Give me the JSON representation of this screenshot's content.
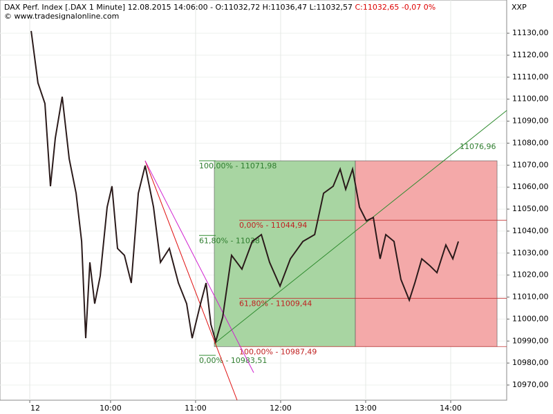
{
  "chart_data": {
    "type": "line",
    "title": "DAX Perf. Index [.DAX  1 Minute] 12.08.2015 14:06:00 - O:11032,72 H:11036,47 L:11032,57",
    "title_change": "C:11032,65 -0,07 0%",
    "source": "© www.tradesignalonline.com",
    "axis_label": "XXP",
    "xlim": [
      522,
      879.5
    ],
    "ylim": [
      10963.1,
      11145.1
    ],
    "xticks": [
      {
        "value": 543,
        "label": "12"
      },
      {
        "value": 600,
        "label": "10:00"
      },
      {
        "value": 660,
        "label": "11:00"
      },
      {
        "value": 720,
        "label": "12:00"
      },
      {
        "value": 780,
        "label": "13:00"
      },
      {
        "value": 840,
        "label": "14:00"
      }
    ],
    "yticks": [
      {
        "value": 10970,
        "label": "10970,00"
      },
      {
        "value": 10980,
        "label": "10980,00"
      },
      {
        "value": 10990,
        "label": "10990,00"
      },
      {
        "value": 11000,
        "label": "11000,00"
      },
      {
        "value": 11010,
        "label": "11010,00"
      },
      {
        "value": 11020,
        "label": "11020,00"
      },
      {
        "value": 11030,
        "label": "11030,00"
      },
      {
        "value": 11040,
        "label": "11040,00"
      },
      {
        "value": 11050,
        "label": "11050,00"
      },
      {
        "value": 11060,
        "label": "11060,00"
      },
      {
        "value": 11070,
        "label": "11070,00"
      },
      {
        "value": 11080,
        "label": "11080,00"
      },
      {
        "value": 11090,
        "label": "11090,00"
      },
      {
        "value": 11100,
        "label": "11100,00"
      },
      {
        "value": 11110,
        "label": "11110,00"
      },
      {
        "value": 11120,
        "label": "11120,00"
      },
      {
        "value": 11130,
        "label": "11130,00"
      }
    ],
    "grid": true,
    "series": [
      {
        "name": "DAX",
        "color": "#2a1a1a",
        "x": [
          544,
          548.8,
          553.7,
          557.6,
          561,
          565.9,
          570.8,
          575.7,
          579.6,
          582.5,
          585.4,
          588.8,
          592.7,
          597.6,
          601,
          604.9,
          609.8,
          614.6,
          619.6,
          624.4,
          630.3,
          635.2,
          641.5,
          647.9,
          653.7,
          657.6,
          663.5,
          667.4,
          670.8,
          674.2,
          679.1,
          685.4,
          692.7,
          700,
          706.4,
          712.2,
          719.6,
          726.9,
          735.7,
          744,
          750.3,
          757.1,
          762,
          765.9,
          770.8,
          775.6,
          780.5,
          785.4,
          790.2,
          794.2,
          800,
          804.9,
          810.8,
          814.7,
          819.6,
          825.4,
          830.3,
          836.6,
          841.5,
          845.4
        ],
        "values": [
          11131,
          11107.4,
          11098,
          11060.4,
          11082.3,
          11101.1,
          11072.9,
          11057.2,
          11035.3,
          10991.3,
          11025.8,
          11007,
          11019.6,
          11050.9,
          11060.4,
          11032.1,
          11029,
          11016.4,
          11057.2,
          11069.8,
          11050.9,
          11025.8,
          11032.1,
          11016.4,
          11007,
          10991.3,
          11007,
          11016.4,
          10997.6,
          10989.8,
          11000.8,
          11029,
          11022.7,
          11035.3,
          11038.4,
          11025.8,
          11015,
          11027.4,
          11035.3,
          11038.4,
          11057.2,
          11060.4,
          11068.2,
          11059,
          11068.2,
          11050.9,
          11044.7,
          11046.2,
          11027.4,
          11038.4,
          11035.3,
          11018,
          11008.6,
          11016.4,
          11027.4,
          11024.2,
          11021.1,
          11033.7,
          11027.4,
          11035.3
        ]
      }
    ],
    "boxes": [
      {
        "x": [
          673.2,
          772.7
        ],
        "y": [
          10987.49,
          11071.98
        ],
        "color": "#a8d5a2"
      },
      {
        "x": [
          772.7,
          872.7
        ],
        "y": [
          10987.49,
          11071.98
        ],
        "color": "#f4a9a9"
      }
    ],
    "fib_green": [
      {
        "label": "100,00% - 11071,98",
        "value": 11071.98
      },
      {
        "label": "61,80% - 11038",
        "value": 11038
      },
      {
        "label": "0,00% - 10983,51",
        "value": 10983.51
      }
    ],
    "fib_red": [
      {
        "label": "0,00% - 11044,94",
        "value": 11044.94
      },
      {
        "label": "61,80% - 11009,44",
        "value": 11009.44
      },
      {
        "label": "100,00% - 10987,49",
        "value": 10987.49
      }
    ],
    "lines": [
      {
        "x": [
          673.2,
          879.6
        ],
        "y": [
          10988.8,
          11094.9
        ],
        "color": "#2e8b2e"
      },
      {
        "x": [
          624.4,
          689.3
        ],
        "y": [
          11072,
          10963.1
        ],
        "color": "#e01010"
      },
      {
        "x": [
          624.4,
          701
        ],
        "y": [
          11072,
          10975.6
        ],
        "color": "#d020d0"
      }
    ],
    "line_label": {
      "label": "11076,96",
      "value": 11076.96
    }
  }
}
